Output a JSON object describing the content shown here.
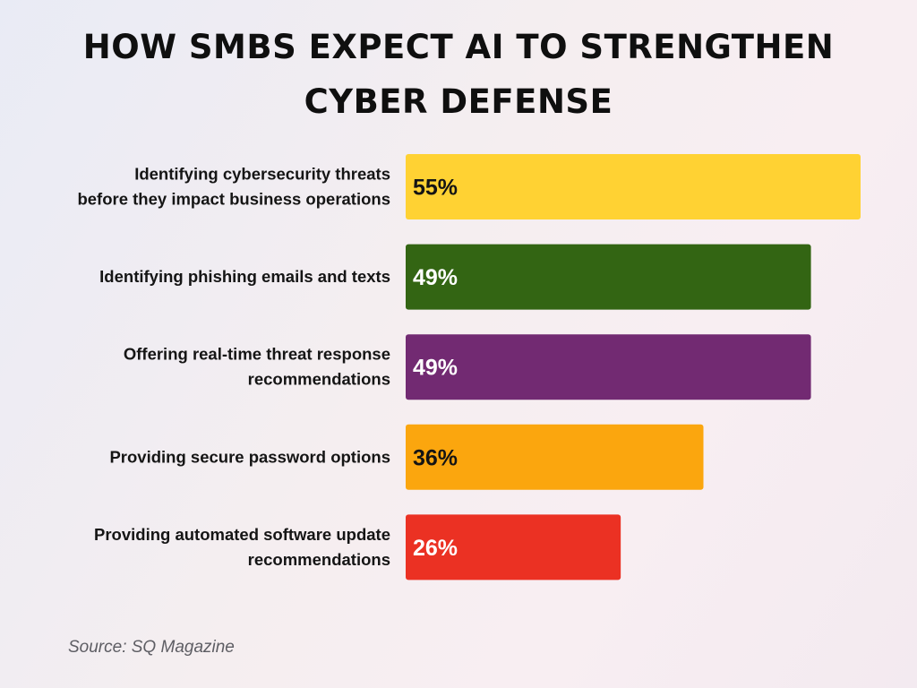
{
  "title_lines": [
    "HOW SMBS EXPECT AI TO STRENGTHEN",
    "CYBER DEFENSE"
  ],
  "source": "Source: SQ Magazine",
  "chart_data": {
    "type": "bar",
    "orientation": "horizontal",
    "categories": [
      [
        "Identifying cybersecurity threats",
        "before they impact business operations"
      ],
      [
        "Identifying phishing emails and texts"
      ],
      [
        "Offering real-time threat response",
        "recommendations"
      ],
      [
        "Providing secure password options"
      ],
      [
        "Providing automated software update",
        "recommendations"
      ]
    ],
    "values": [
      55,
      49,
      49,
      36,
      26
    ],
    "value_labels": [
      "55%",
      "49%",
      "49%",
      "36%",
      "26%"
    ],
    "colors": [
      "#ffd233",
      "#336513",
      "#722a72",
      "#fba60e",
      "#eb3123"
    ],
    "label_colors": [
      "#141414",
      "#ffffff",
      "#ffffff",
      "#141414",
      "#ffffff"
    ],
    "xlim": [
      0,
      55
    ],
    "grid": false,
    "legend": "none"
  }
}
